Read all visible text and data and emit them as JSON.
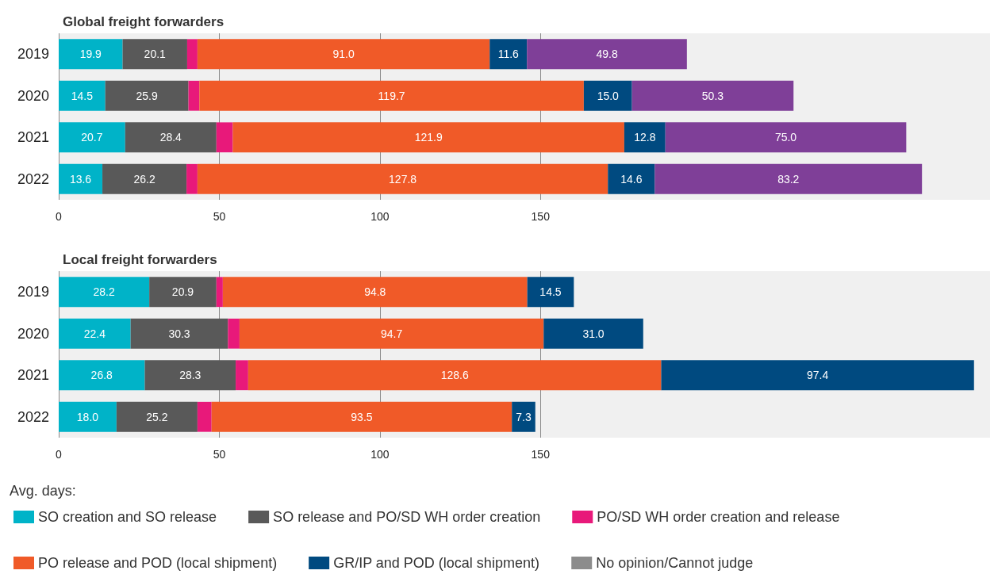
{
  "chart_data": [
    {
      "type": "bar",
      "title": "Global freight forwarders",
      "orientation": "horizontal",
      "stacked": true,
      "categories": [
        "2019",
        "2020",
        "2021",
        "2022"
      ],
      "xlim": [
        0,
        290
      ],
      "xticks": [
        0,
        50,
        100,
        150
      ],
      "grid": "x",
      "legend": false,
      "series": [
        {
          "color": "#00b3c8",
          "values": [
            19.9,
            14.5,
            20.7,
            13.6
          ],
          "value_labels": [
            "19.9",
            "14.5",
            "20.7",
            "13.6"
          ]
        },
        {
          "color": "#595959",
          "values": [
            20.1,
            25.9,
            28.4,
            26.2
          ],
          "value_labels": [
            "20.1",
            "25.9",
            "28.4",
            "26.2"
          ]
        },
        {
          "color": "#e8197a",
          "values": [
            3.2,
            3.4,
            5.1,
            3.4
          ]
        },
        {
          "color": "#f05a28",
          "values": [
            91.0,
            119.7,
            121.9,
            127.8
          ],
          "value_labels": [
            "91.0",
            "119.7",
            "121.9",
            "127.8"
          ]
        },
        {
          "color": "#004a80",
          "values": [
            11.6,
            15.0,
            12.8,
            14.6
          ],
          "value_labels": [
            "11.6",
            "15.0",
            "12.8",
            "14.6"
          ]
        },
        {
          "color": "#7f3f98",
          "values": [
            49.8,
            50.3,
            75.0,
            83.2
          ],
          "value_labels": [
            "49.8",
            "50.3",
            "75.0",
            "83.2"
          ]
        }
      ]
    },
    {
      "type": "bar",
      "title": "Local freight forwarders",
      "orientation": "horizontal",
      "stacked": true,
      "categories": [
        "2019",
        "2020",
        "2021",
        "2022"
      ],
      "xlim": [
        0,
        290
      ],
      "xticks": [
        0,
        50,
        100,
        150
      ],
      "grid": "x",
      "legend": "bottom",
      "legend_title": "Avg. days:",
      "series": [
        {
          "name": "SO creation and SO release",
          "color": "#00b3c8",
          "values": [
            28.2,
            22.4,
            26.8,
            18.0
          ],
          "value_labels": [
            "28.2",
            "22.4",
            "26.8",
            "18.0"
          ]
        },
        {
          "name": "SO release and PO/SD WH order creation",
          "color": "#595959",
          "values": [
            20.9,
            30.3,
            28.3,
            25.2
          ],
          "value_labels": [
            "20.9",
            "30.3",
            "28.3",
            "25.2"
          ]
        },
        {
          "name": "PO/SD WH order creation and release",
          "color": "#e8197a",
          "values": [
            2.0,
            3.6,
            3.9,
            4.4
          ]
        },
        {
          "name": "PO release and POD (local shipment)",
          "color": "#f05a28",
          "values": [
            94.8,
            94.7,
            128.6,
            93.5
          ],
          "value_labels": [
            "94.8",
            "94.7",
            "128.6",
            "93.5"
          ]
        },
        {
          "name": "GR/IP and POD (local shipment)",
          "color": "#004a80",
          "values": [
            14.5,
            31.0,
            97.4,
            7.3
          ],
          "value_labels": [
            "14.5",
            "31.0",
            "97.4",
            "7.3"
          ]
        },
        {
          "name": "No opinion/Cannot judge",
          "color": "#8c8c8c",
          "values": [
            null,
            null,
            null,
            null
          ]
        }
      ]
    }
  ]
}
